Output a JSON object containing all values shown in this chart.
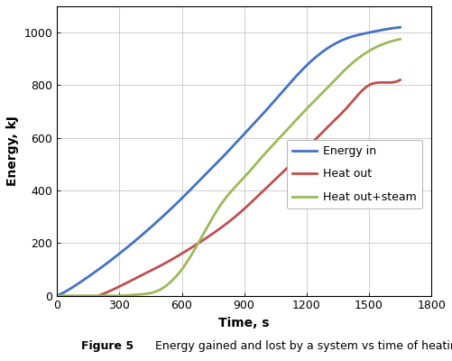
{
  "xlabel": "Time, s",
  "ylabel": "Energy, kJ",
  "xlim": [
    0,
    1800
  ],
  "ylim": [
    0,
    1100
  ],
  "xticks": [
    0,
    300,
    600,
    900,
    1200,
    1500,
    1800
  ],
  "yticks": [
    0,
    200,
    400,
    600,
    800,
    1000
  ],
  "caption_bold": "Figure 5",
  "caption_normal": "   Energy gained and lost by a system vs time of heating.",
  "energy_in_color": "#4472C4",
  "heat_out_color": "#C0504D",
  "heat_out_steam_color": "#9BBB59",
  "line_width": 2.0,
  "legend_labels": [
    "Energy in",
    "Heat out",
    "Heat out+steam"
  ],
  "background_color": "#FFFFFF",
  "grid_color": "#C8C8C8",
  "energy_in_t": [
    0,
    50,
    100,
    200,
    300,
    400,
    500,
    600,
    700,
    800,
    900,
    1000,
    1100,
    1200,
    1300,
    1400,
    1500,
    1600,
    1650
  ],
  "energy_in_e": [
    0,
    20,
    45,
    100,
    160,
    225,
    295,
    370,
    450,
    530,
    615,
    700,
    790,
    875,
    940,
    980,
    1000,
    1015,
    1020
  ],
  "heat_out_t": [
    200,
    300,
    400,
    500,
    600,
    700,
    800,
    900,
    1000,
    1100,
    1200,
    1300,
    1400,
    1500,
    1600,
    1650
  ],
  "heat_out_e": [
    0,
    35,
    75,
    115,
    160,
    210,
    265,
    330,
    405,
    480,
    560,
    640,
    720,
    800,
    810,
    820
  ],
  "steam_t": [
    0,
    100,
    200,
    300,
    400,
    450,
    500,
    550,
    600,
    650,
    700,
    800,
    900,
    1000,
    1100,
    1200,
    1300,
    1400,
    1500,
    1600,
    1650
  ],
  "steam_e": [
    0,
    0,
    0,
    0,
    5,
    10,
    25,
    55,
    100,
    160,
    230,
    360,
    450,
    540,
    625,
    710,
    790,
    870,
    930,
    965,
    975
  ]
}
